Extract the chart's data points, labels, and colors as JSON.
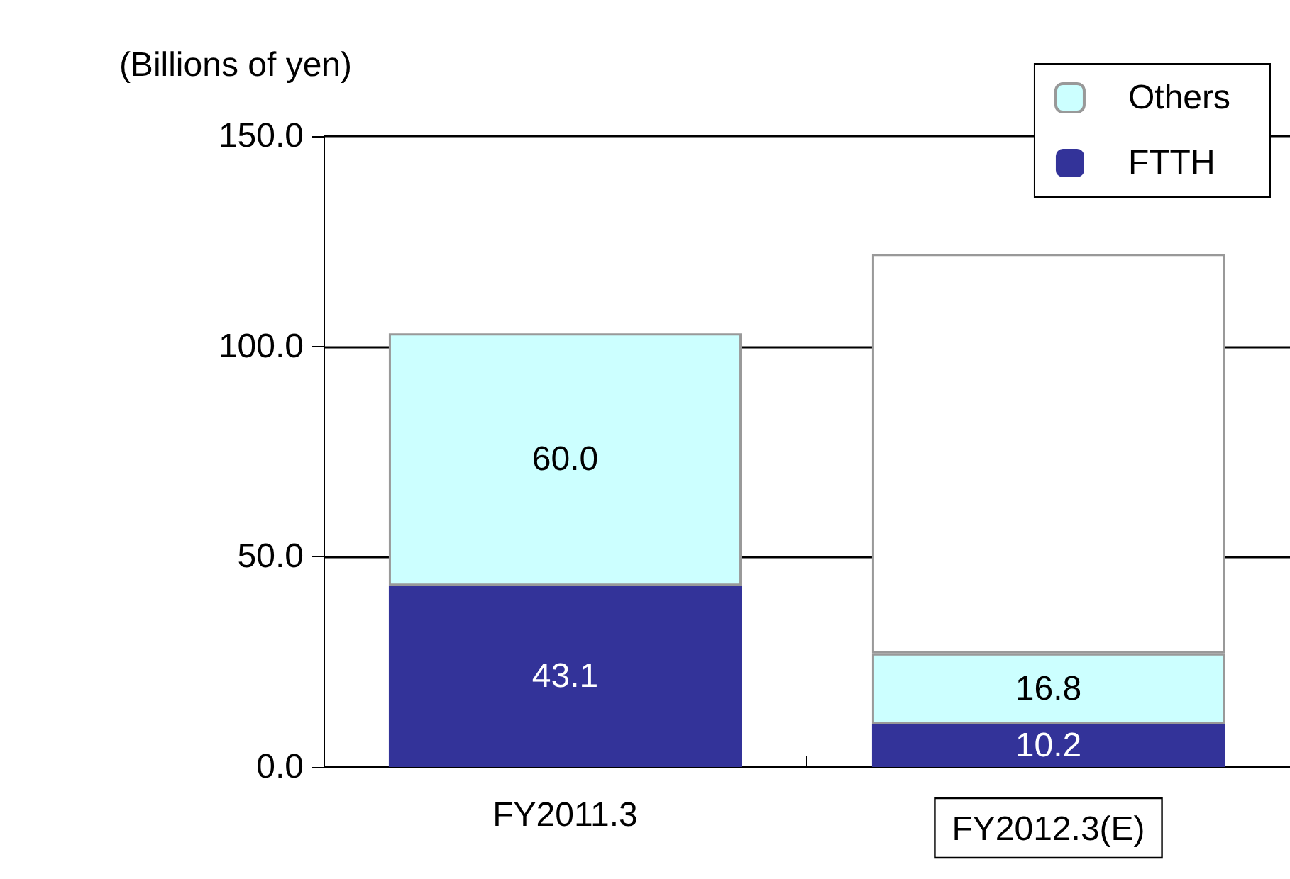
{
  "chart_data": {
    "type": "bar",
    "stacked": true,
    "ylabel": "(Billions of yen)",
    "categories": [
      "FY2011.3",
      "FY2012.3(E)"
    ],
    "series": [
      {
        "name": "FTTH",
        "color": "#333399",
        "values": [
          43.1,
          10.2
        ],
        "value_labels": [
          "43.1",
          "10.2"
        ]
      },
      {
        "name": "Others",
        "color": "#ccffff",
        "values": [
          60.0,
          16.8
        ],
        "value_labels": [
          "60.0",
          "16.8"
        ]
      },
      {
        "color": "#ffffff",
        "values": [
          null,
          95
        ]
      }
    ],
    "ylim": [
      0,
      150
    ],
    "yticks": [
      {
        "value": 0,
        "label": "0.0"
      },
      {
        "value": 50,
        "label": "50.0"
      },
      {
        "value": 100,
        "label": "100.0"
      },
      {
        "value": 150,
        "label": "150.0"
      }
    ],
    "grid": "y",
    "legend": "top right"
  }
}
